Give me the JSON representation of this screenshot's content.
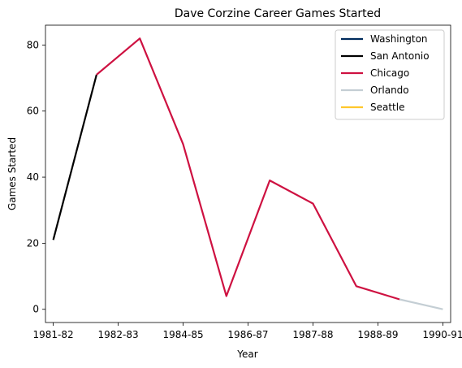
{
  "chart_data": {
    "type": "line",
    "title": "Dave Corzine Career Games Started",
    "xlabel": "Year",
    "ylabel": "Games Started",
    "x_ticks": [
      "1981-82",
      "1982-83",
      "1984-85",
      "1986-87",
      "1987-88",
      "1988-89",
      "1990-91"
    ],
    "x_range": [
      -0.18,
      9.18
    ],
    "ylim": [
      -4,
      86
    ],
    "y_ticks": [
      0,
      20,
      40,
      60,
      80
    ],
    "grid": false,
    "legend_position": "upper right",
    "series": [
      {
        "name": "Washington",
        "color": "#002B5C",
        "points": []
      },
      {
        "name": "San Antonio",
        "color": "#000000",
        "points": [
          [
            0,
            21
          ],
          [
            1,
            71
          ]
        ]
      },
      {
        "name": "Chicago",
        "color": "#CE1141",
        "points": [
          [
            1,
            71
          ],
          [
            2,
            82
          ],
          [
            3,
            50
          ],
          [
            4,
            4
          ],
          [
            5,
            39
          ],
          [
            6,
            32
          ],
          [
            7,
            7
          ],
          [
            8,
            3
          ]
        ]
      },
      {
        "name": "Orlando",
        "color": "#C4CED4",
        "points": [
          [
            8,
            3
          ],
          [
            9,
            0
          ]
        ]
      },
      {
        "name": "Seattle",
        "color": "#FFC72C",
        "points": []
      }
    ]
  }
}
